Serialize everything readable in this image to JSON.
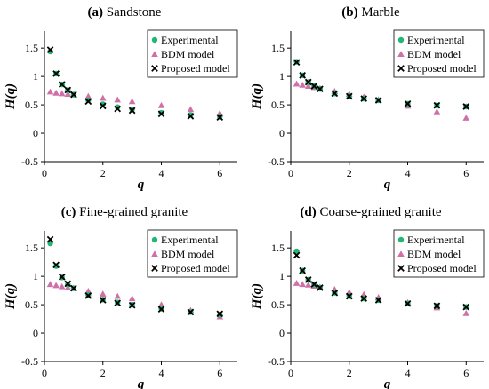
{
  "chart_data": [
    {
      "type": "scatter",
      "label": "(a)",
      "title": "Sandstone",
      "xlabel": "q",
      "ylabel": "H(q)",
      "xlim": [
        0,
        6.6
      ],
      "ylim": [
        -0.5,
        1.8
      ],
      "xticks": [
        "0",
        "2",
        "4",
        "6"
      ],
      "yticks": [
        "-0.5",
        "0",
        "0.5",
        "1",
        "1.5"
      ],
      "legend": "top-right",
      "series": [
        {
          "name": "Experimental",
          "marker": "circle",
          "color": "#22b573",
          "x": [
            0.2,
            0.4,
            0.6,
            0.8,
            1,
            1.5,
            2,
            2.5,
            3,
            4,
            5,
            6
          ],
          "y": [
            1.44,
            1.05,
            0.86,
            0.76,
            0.68,
            0.58,
            0.51,
            0.46,
            0.42,
            0.36,
            0.32,
            0.29
          ]
        },
        {
          "name": "BDM model",
          "marker": "triangle",
          "color": "#d070a8",
          "x": [
            0.2,
            0.4,
            0.6,
            0.8,
            1,
            1.5,
            2,
            2.5,
            3,
            4,
            5,
            6
          ],
          "y": [
            0.73,
            0.71,
            0.7,
            0.69,
            0.68,
            0.65,
            0.62,
            0.59,
            0.56,
            0.49,
            0.42,
            0.35
          ]
        },
        {
          "name": "Proposed model",
          "marker": "x",
          "color": "#000000",
          "x": [
            0.2,
            0.4,
            0.6,
            0.8,
            1,
            1.5,
            2,
            2.5,
            3,
            4,
            5,
            6
          ],
          "y": [
            1.47,
            1.05,
            0.86,
            0.76,
            0.68,
            0.56,
            0.48,
            0.43,
            0.4,
            0.34,
            0.3,
            0.28
          ]
        }
      ]
    },
    {
      "type": "scatter",
      "label": "(b)",
      "title": "Marble",
      "xlabel": "q",
      "ylabel": "H(q)",
      "xlim": [
        0,
        6.6
      ],
      "ylim": [
        -0.5,
        1.8
      ],
      "xticks": [
        "0",
        "2",
        "4",
        "6"
      ],
      "yticks": [
        "-0.5",
        "0",
        "0.5",
        "1",
        "1.5"
      ],
      "legend": "top-right",
      "series": [
        {
          "name": "Experimental",
          "marker": "circle",
          "color": "#22b573",
          "x": [
            0.2,
            0.4,
            0.6,
            0.8,
            1,
            1.5,
            2,
            2.5,
            3,
            4,
            5,
            6
          ],
          "y": [
            1.26,
            1.02,
            0.9,
            0.83,
            0.78,
            0.7,
            0.65,
            0.61,
            0.58,
            0.52,
            0.49,
            0.47
          ]
        },
        {
          "name": "BDM model",
          "marker": "triangle",
          "color": "#d070a8",
          "x": [
            0.2,
            0.4,
            0.6,
            0.8,
            1,
            1.5,
            2,
            2.5,
            3,
            4,
            5,
            6
          ],
          "y": [
            0.87,
            0.85,
            0.83,
            0.81,
            0.79,
            0.74,
            0.69,
            0.64,
            0.59,
            0.48,
            0.38,
            0.27
          ]
        },
        {
          "name": "Proposed model",
          "marker": "x",
          "color": "#000000",
          "x": [
            0.2,
            0.4,
            0.6,
            0.8,
            1,
            1.5,
            2,
            2.5,
            3,
            4,
            5,
            6
          ],
          "y": [
            1.25,
            1.02,
            0.9,
            0.83,
            0.78,
            0.7,
            0.65,
            0.61,
            0.58,
            0.52,
            0.49,
            0.47
          ]
        }
      ]
    },
    {
      "type": "scatter",
      "label": "(c)",
      "title": "Fine-grained granite",
      "xlabel": "q",
      "ylabel": "H(q)",
      "xlim": [
        0,
        6.6
      ],
      "ylim": [
        -0.5,
        1.8
      ],
      "xticks": [
        "0",
        "2",
        "4",
        "6"
      ],
      "yticks": [
        "-0.5",
        "0",
        "0.5",
        "1",
        "1.5"
      ],
      "legend": "top-right",
      "series": [
        {
          "name": "Experimental",
          "marker": "circle",
          "color": "#22b573",
          "x": [
            0.2,
            0.4,
            0.6,
            0.8,
            1,
            1.5,
            2,
            2.5,
            3,
            4,
            5,
            6
          ],
          "y": [
            1.58,
            1.18,
            0.98,
            0.86,
            0.79,
            0.67,
            0.59,
            0.54,
            0.5,
            0.43,
            0.37,
            0.32
          ]
        },
        {
          "name": "BDM model",
          "marker": "triangle",
          "color": "#d070a8",
          "x": [
            0.2,
            0.4,
            0.6,
            0.8,
            1,
            1.5,
            2,
            2.5,
            3,
            4,
            5,
            6
          ],
          "y": [
            0.86,
            0.84,
            0.82,
            0.8,
            0.79,
            0.74,
            0.69,
            0.65,
            0.61,
            0.5,
            0.4,
            0.29
          ]
        },
        {
          "name": "Proposed model",
          "marker": "x",
          "color": "#000000",
          "x": [
            0.2,
            0.4,
            0.6,
            0.8,
            1,
            1.5,
            2,
            2.5,
            3,
            4,
            5,
            6
          ],
          "y": [
            1.65,
            1.2,
            0.99,
            0.87,
            0.79,
            0.66,
            0.58,
            0.53,
            0.49,
            0.42,
            0.37,
            0.34
          ]
        }
      ]
    },
    {
      "type": "scatter",
      "label": "(d)",
      "title": "Coarse-grained granite",
      "xlabel": "q",
      "ylabel": "H(q)",
      "xlim": [
        0,
        6.6
      ],
      "ylim": [
        -0.5,
        1.8
      ],
      "xticks": [
        "0",
        "2",
        "4",
        "6"
      ],
      "yticks": [
        "-0.5",
        "0",
        "0.5",
        "1",
        "1.5"
      ],
      "legend": "top-right",
      "series": [
        {
          "name": "Experimental",
          "marker": "circle",
          "color": "#22b573",
          "x": [
            0.2,
            0.4,
            0.6,
            0.8,
            1,
            1.5,
            2,
            2.5,
            3,
            4,
            5,
            6
          ],
          "y": [
            1.44,
            1.1,
            0.94,
            0.86,
            0.8,
            0.71,
            0.65,
            0.61,
            0.58,
            0.52,
            0.48,
            0.46
          ]
        },
        {
          "name": "BDM model",
          "marker": "triangle",
          "color": "#d070a8",
          "x": [
            0.2,
            0.4,
            0.6,
            0.8,
            1,
            1.5,
            2,
            2.5,
            3,
            4,
            5,
            6
          ],
          "y": [
            0.88,
            0.86,
            0.85,
            0.83,
            0.81,
            0.77,
            0.72,
            0.68,
            0.63,
            0.54,
            0.45,
            0.35
          ]
        },
        {
          "name": "Proposed model",
          "marker": "x",
          "color": "#000000",
          "x": [
            0.2,
            0.4,
            0.6,
            0.8,
            1,
            1.5,
            2,
            2.5,
            3,
            4,
            5,
            6
          ],
          "y": [
            1.37,
            1.1,
            0.94,
            0.86,
            0.8,
            0.71,
            0.65,
            0.61,
            0.58,
            0.52,
            0.48,
            0.46
          ]
        }
      ]
    }
  ]
}
